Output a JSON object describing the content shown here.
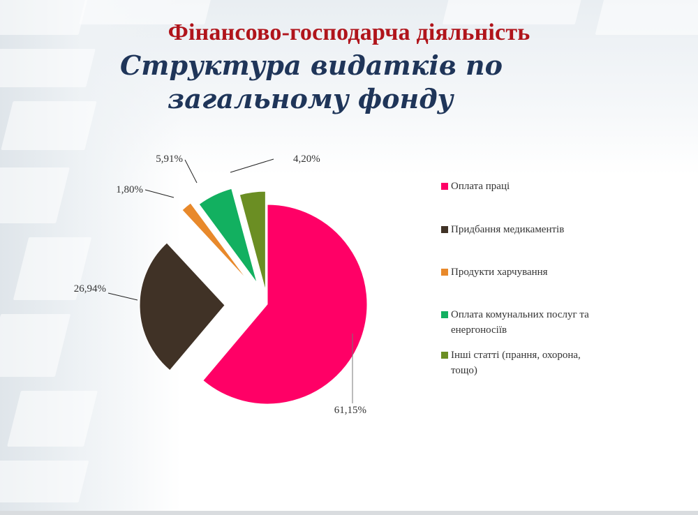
{
  "header": {
    "title": "Фінансово-господарча діяльність",
    "subtitle_line1": "Структура видатків по",
    "subtitle_line2": "загальному фонду"
  },
  "chart_data": {
    "type": "pie",
    "title": "Структура видатків по загальному фонду",
    "categories": [
      "Оплата праці",
      "Придбання медикаментів",
      "Продукти харчування",
      "Оплата комунальних послуг та енергоносіїв",
      "Інші статті (прання, охорона, тощо)"
    ],
    "values": [
      61.15,
      26.94,
      1.8,
      5.91,
      4.2
    ],
    "data_labels": [
      "61,15%",
      "26,94%",
      "1,80%",
      "5,91%",
      "4,20%"
    ],
    "colors": [
      "#ff0066",
      "#403226",
      "#e8892b",
      "#12b060",
      "#6b8e23"
    ],
    "start_angle_deg": 0,
    "direction": "clockwise",
    "exploded": true,
    "legend_position": "right"
  },
  "legend": {
    "items": [
      {
        "label_line1": "Оплата праці",
        "label_line2": "",
        "color": "#ff0066"
      },
      {
        "label_line1": "Придбання медикаментів",
        "label_line2": "",
        "color": "#403226"
      },
      {
        "label_line1": "Продукти харчування",
        "label_line2": "",
        "color": "#e8892b"
      },
      {
        "label_line1": "Оплата комунальних послуг та",
        "label_line2": "енергоносіїв",
        "color": "#12b060"
      },
      {
        "label_line1": "Інші статті (прання, охорона,",
        "label_line2": "тощо)",
        "color": "#6b8e23"
      }
    ]
  }
}
